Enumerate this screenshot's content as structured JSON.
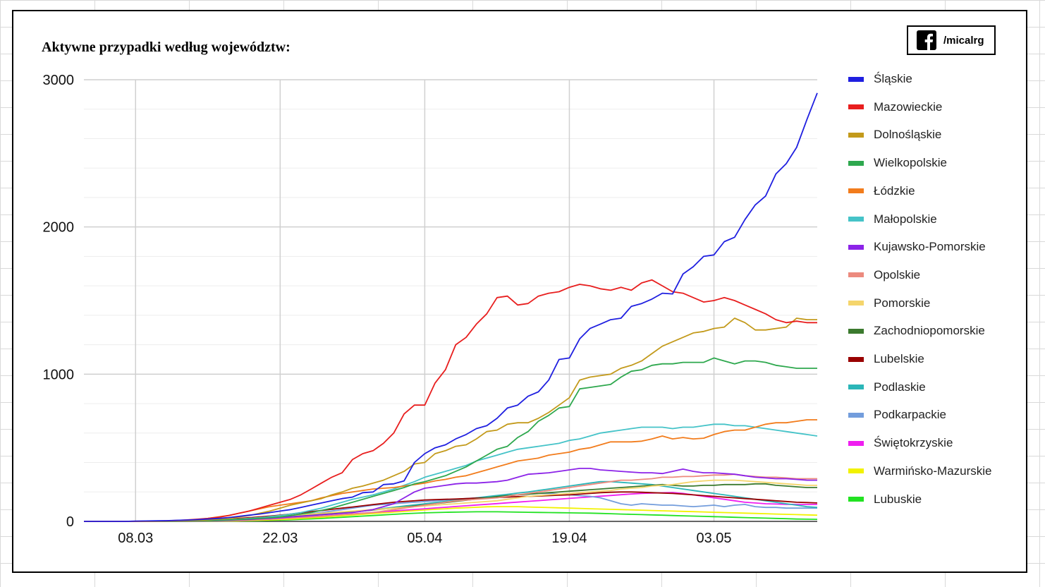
{
  "branding": {
    "handle": "/micalrg",
    "icon": "facebook-icon"
  },
  "chart_data": {
    "type": "line",
    "title": "Aktywne przypadki według województw:",
    "xlabel": "",
    "ylabel": "",
    "x": [
      "03.03",
      "04.03",
      "05.03",
      "06.03",
      "07.03",
      "08.03",
      "09.03",
      "10.03",
      "11.03",
      "12.03",
      "13.03",
      "14.03",
      "15.03",
      "16.03",
      "17.03",
      "18.03",
      "19.03",
      "20.03",
      "21.03",
      "22.03",
      "23.03",
      "24.03",
      "25.03",
      "26.03",
      "27.03",
      "28.03",
      "29.03",
      "30.03",
      "31.03",
      "01.04",
      "02.04",
      "03.04",
      "04.04",
      "05.04",
      "06.04",
      "07.04",
      "08.04",
      "09.04",
      "10.04",
      "11.04",
      "12.04",
      "13.04",
      "14.04",
      "15.04",
      "16.04",
      "17.04",
      "18.04",
      "19.04",
      "20.04",
      "21.04",
      "22.04",
      "23.04",
      "24.04",
      "25.04",
      "26.04",
      "27.04",
      "28.04",
      "29.04",
      "30.04",
      "01.05",
      "02.05",
      "03.05",
      "04.05",
      "05.05",
      "06.05",
      "07.05",
      "08.05",
      "09.05",
      "10.05",
      "11.05",
      "12.05",
      "13.05"
    ],
    "xticks": [
      "08.03",
      "22.03",
      "05.04",
      "19.04",
      "03.05"
    ],
    "ylim": [
      0,
      3000
    ],
    "yticks": [
      0,
      1000,
      2000,
      3000
    ],
    "grid": true,
    "legend_position": "right",
    "series": [
      {
        "name": "Śląskie",
        "color": "#1f1fe0",
        "values": [
          0,
          0,
          0,
          0,
          0,
          2,
          3,
          4,
          5,
          7,
          9,
          12,
          16,
          20,
          26,
          34,
          42,
          50,
          60,
          70,
          80,
          95,
          110,
          125,
          140,
          155,
          165,
          195,
          200,
          250,
          255,
          275,
          400,
          460,
          500,
          520,
          560,
          590,
          630,
          650,
          700,
          770,
          790,
          850,
          880,
          960,
          1100,
          1110,
          1240,
          1310,
          1340,
          1370,
          1380,
          1460,
          1480,
          1510,
          1550,
          1545,
          1680,
          1730,
          1800,
          1810,
          1900,
          1930,
          2050,
          2150,
          2210,
          2360,
          2430,
          2540,
          2730,
          2910
        ]
      },
      {
        "name": "Mazowieckie",
        "color": "#e81e1e",
        "values": [
          0,
          0,
          0,
          0,
          0,
          1,
          2,
          3,
          4,
          6,
          10,
          15,
          20,
          28,
          40,
          55,
          70,
          90,
          110,
          130,
          150,
          180,
          220,
          260,
          300,
          330,
          420,
          460,
          480,
          530,
          600,
          730,
          790,
          790,
          940,
          1030,
          1200,
          1250,
          1340,
          1410,
          1520,
          1530,
          1470,
          1480,
          1530,
          1550,
          1560,
          1590,
          1610,
          1600,
          1580,
          1570,
          1590,
          1570,
          1620,
          1640,
          1600,
          1560,
          1550,
          1520,
          1490,
          1500,
          1520,
          1500,
          1470,
          1440,
          1410,
          1370,
          1350,
          1360,
          1350,
          1350
        ]
      },
      {
        "name": "Dolnośląskie",
        "color": "#c39a1b",
        "values": [
          0,
          0,
          0,
          0,
          0,
          0,
          0,
          1,
          2,
          3,
          5,
          7,
          10,
          15,
          20,
          30,
          40,
          55,
          70,
          90,
          110,
          125,
          140,
          155,
          180,
          200,
          225,
          240,
          260,
          280,
          310,
          340,
          390,
          400,
          460,
          480,
          510,
          520,
          560,
          610,
          620,
          660,
          670,
          670,
          700,
          740,
          790,
          840,
          960,
          980,
          990,
          1000,
          1040,
          1060,
          1090,
          1140,
          1190,
          1220,
          1250,
          1280,
          1290,
          1310,
          1320,
          1380,
          1350,
          1300,
          1300,
          1310,
          1320,
          1380,
          1370,
          1370
        ]
      },
      {
        "name": "Wielkopolskie",
        "color": "#2ea84e",
        "values": [
          0,
          0,
          0,
          0,
          0,
          0,
          0,
          0,
          0,
          1,
          2,
          3,
          5,
          7,
          10,
          13,
          17,
          20,
          25,
          30,
          40,
          50,
          60,
          75,
          90,
          110,
          130,
          150,
          170,
          190,
          210,
          230,
          255,
          270,
          290,
          310,
          340,
          370,
          410,
          450,
          490,
          510,
          570,
          610,
          680,
          720,
          770,
          780,
          900,
          910,
          920,
          930,
          980,
          1020,
          1030,
          1060,
          1070,
          1070,
          1080,
          1080,
          1080,
          1110,
          1090,
          1070,
          1090,
          1090,
          1080,
          1060,
          1050,
          1040,
          1040,
          1040
        ]
      },
      {
        "name": "Łódzkie",
        "color": "#f27c1c",
        "values": [
          0,
          0,
          0,
          0,
          0,
          0,
          0,
          1,
          2,
          4,
          7,
          12,
          20,
          30,
          40,
          55,
          70,
          85,
          100,
          110,
          120,
          130,
          140,
          160,
          175,
          190,
          200,
          210,
          220,
          225,
          230,
          240,
          250,
          260,
          275,
          285,
          300,
          310,
          330,
          350,
          370,
          390,
          410,
          420,
          430,
          450,
          460,
          470,
          490,
          500,
          520,
          540,
          540,
          540,
          545,
          560,
          580,
          560,
          570,
          560,
          565,
          590,
          610,
          620,
          620,
          640,
          660,
          670,
          670,
          680,
          690,
          690
        ]
      },
      {
        "name": "Małopolskie",
        "color": "#45c3c8",
        "values": [
          0,
          0,
          0,
          0,
          0,
          0,
          0,
          0,
          0,
          1,
          2,
          3,
          5,
          8,
          11,
          15,
          20,
          25,
          32,
          40,
          50,
          60,
          75,
          90,
          110,
          130,
          150,
          165,
          180,
          200,
          220,
          245,
          270,
          300,
          320,
          340,
          360,
          380,
          410,
          430,
          450,
          470,
          490,
          500,
          510,
          520,
          530,
          550,
          560,
          580,
          600,
          610,
          620,
          630,
          640,
          640,
          640,
          630,
          640,
          640,
          650,
          660,
          660,
          650,
          650,
          640,
          630,
          620,
          610,
          600,
          590,
          580
        ]
      },
      {
        "name": "Kujawsko-Pomorskie",
        "color": "#8c23e8",
        "values": [
          0,
          0,
          0,
          0,
          0,
          0,
          0,
          0,
          0,
          0,
          1,
          2,
          3,
          5,
          8,
          10,
          13,
          17,
          20,
          25,
          30,
          35,
          40,
          45,
          50,
          55,
          60,
          70,
          80,
          100,
          120,
          160,
          200,
          225,
          235,
          245,
          255,
          260,
          260,
          265,
          270,
          280,
          300,
          320,
          325,
          330,
          340,
          350,
          360,
          360,
          350,
          345,
          340,
          335,
          330,
          330,
          325,
          340,
          355,
          340,
          330,
          330,
          325,
          320,
          310,
          300,
          295,
          290,
          290,
          285,
          280,
          280
        ]
      },
      {
        "name": "Opolskie",
        "color": "#ec8a7e",
        "values": [
          0,
          0,
          0,
          0,
          0,
          0,
          0,
          0,
          0,
          0,
          0,
          1,
          2,
          3,
          5,
          7,
          9,
          12,
          15,
          18,
          22,
          26,
          30,
          35,
          40,
          45,
          50,
          55,
          60,
          70,
          80,
          90,
          100,
          110,
          120,
          130,
          140,
          145,
          150,
          155,
          160,
          170,
          180,
          190,
          200,
          210,
          220,
          230,
          240,
          250,
          260,
          270,
          280,
          280,
          285,
          290,
          300,
          300,
          305,
          305,
          310,
          315,
          315,
          320,
          310,
          305,
          300,
          300,
          295,
          290,
          290,
          290
        ]
      },
      {
        "name": "Pomorskie",
        "color": "#f5d56c",
        "values": [
          0,
          0,
          0,
          0,
          0,
          0,
          0,
          1,
          1,
          2,
          3,
          5,
          7,
          10,
          13,
          16,
          20,
          25,
          30,
          35,
          40,
          45,
          50,
          55,
          60,
          65,
          70,
          75,
          80,
          85,
          90,
          95,
          100,
          105,
          110,
          115,
          120,
          125,
          130,
          135,
          140,
          150,
          160,
          170,
          175,
          180,
          185,
          190,
          195,
          200,
          205,
          210,
          220,
          225,
          230,
          240,
          245,
          250,
          260,
          270,
          275,
          280,
          280,
          280,
          275,
          270,
          265,
          260,
          255,
          250,
          245,
          245
        ]
      },
      {
        "name": "Zachodniopomorskie",
        "color": "#3b7a2e",
        "values": [
          0,
          0,
          0,
          0,
          0,
          0,
          0,
          0,
          0,
          1,
          2,
          3,
          5,
          7,
          10,
          13,
          16,
          20,
          24,
          28,
          33,
          38,
          43,
          48,
          53,
          58,
          63,
          70,
          77,
          84,
          91,
          98,
          105,
          112,
          120,
          128,
          136,
          144,
          152,
          160,
          168,
          175,
          180,
          185,
          190,
          195,
          200,
          205,
          210,
          215,
          220,
          225,
          230,
          235,
          240,
          245,
          250,
          245,
          240,
          240,
          245,
          245,
          250,
          250,
          250,
          255,
          255,
          245,
          240,
          235,
          230,
          230
        ]
      },
      {
        "name": "Lubelskie",
        "color": "#990000",
        "values": [
          0,
          0,
          0,
          0,
          0,
          0,
          0,
          0,
          1,
          2,
          3,
          5,
          8,
          11,
          15,
          20,
          25,
          30,
          36,
          42,
          50,
          58,
          66,
          74,
          82,
          90,
          98,
          106,
          114,
          122,
          130,
          135,
          140,
          145,
          148,
          150,
          152,
          155,
          158,
          160,
          162,
          165,
          168,
          170,
          172,
          175,
          178,
          180,
          185,
          190,
          195,
          198,
          200,
          200,
          198,
          195,
          192,
          190,
          185,
          180,
          175,
          170,
          165,
          160,
          155,
          150,
          145,
          140,
          135,
          130,
          128,
          125
        ]
      },
      {
        "name": "Podlaskie",
        "color": "#2bb6b8",
        "values": [
          0,
          0,
          0,
          0,
          0,
          0,
          0,
          0,
          0,
          0,
          1,
          2,
          3,
          5,
          7,
          10,
          13,
          17,
          21,
          25,
          30,
          35,
          40,
          46,
          52,
          58,
          65,
          72,
          80,
          88,
          96,
          104,
          112,
          120,
          128,
          136,
          144,
          152,
          160,
          168,
          176,
          184,
          192,
          200,
          210,
          220,
          230,
          240,
          250,
          260,
          270,
          270,
          265,
          260,
          255,
          250,
          240,
          230,
          220,
          210,
          200,
          190,
          180,
          170,
          160,
          150,
          140,
          130,
          120,
          110,
          100,
          95
        ]
      },
      {
        "name": "Podkarpackie",
        "color": "#739ddc",
        "values": [
          0,
          0,
          0,
          0,
          0,
          0,
          0,
          0,
          0,
          1,
          2,
          3,
          5,
          8,
          12,
          16,
          20,
          25,
          30,
          35,
          40,
          45,
          52,
          60,
          70,
          80,
          90,
          100,
          110,
          115,
          120,
          125,
          130,
          135,
          140,
          145,
          150,
          155,
          160,
          165,
          170,
          175,
          180,
          185,
          190,
          190,
          185,
          180,
          175,
          170,
          160,
          140,
          120,
          110,
          120,
          115,
          110,
          110,
          105,
          100,
          105,
          110,
          100,
          110,
          115,
          100,
          95,
          95,
          90,
          90,
          90,
          90
        ]
      },
      {
        "name": "Świętokrzyskie",
        "color": "#ef1ef0",
        "values": [
          0,
          0,
          0,
          0,
          0,
          0,
          0,
          0,
          0,
          0,
          0,
          1,
          2,
          3,
          5,
          7,
          9,
          12,
          15,
          19,
          23,
          27,
          31,
          36,
          41,
          46,
          51,
          56,
          61,
          66,
          71,
          76,
          81,
          86,
          91,
          96,
          101,
          106,
          111,
          116,
          121,
          126,
          131,
          136,
          141,
          146,
          151,
          156,
          161,
          166,
          171,
          176,
          181,
          186,
          190,
          192,
          194,
          196,
          190,
          180,
          170,
          160,
          150,
          140,
          130,
          125,
          120,
          118,
          116,
          115,
          115,
          115
        ]
      },
      {
        "name": "Warmińsko-Mazurskie",
        "color": "#f2f200",
        "values": [
          0,
          0,
          0,
          0,
          0,
          0,
          0,
          0,
          0,
          0,
          0,
          0,
          1,
          2,
          3,
          4,
          6,
          8,
          10,
          13,
          16,
          20,
          24,
          28,
          33,
          38,
          43,
          48,
          53,
          58,
          63,
          68,
          73,
          78,
          82,
          86,
          90,
          93,
          96,
          99,
          100,
          100,
          100,
          98,
          96,
          94,
          92,
          90,
          88,
          86,
          84,
          82,
          80,
          78,
          76,
          74,
          72,
          70,
          68,
          66,
          64,
          62,
          60,
          58,
          56,
          54,
          52,
          50,
          48,
          46,
          44,
          42
        ]
      },
      {
        "name": "Lubuskie",
        "color": "#22e222",
        "values": [
          0,
          0,
          0,
          0,
          0,
          0,
          0,
          0,
          0,
          0,
          0,
          0,
          0,
          1,
          2,
          3,
          4,
          5,
          7,
          9,
          11,
          14,
          17,
          20,
          24,
          28,
          32,
          36,
          40,
          44,
          48,
          52,
          55,
          58,
          60,
          62,
          63,
          64,
          65,
          65,
          65,
          64,
          63,
          62,
          61,
          60,
          59,
          58,
          57,
          56,
          54,
          52,
          50,
          48,
          46,
          44,
          42,
          40,
          38,
          36,
          34,
          32,
          30,
          28,
          26,
          24,
          22,
          20,
          18,
          16,
          15,
          14
        ]
      }
    ]
  }
}
